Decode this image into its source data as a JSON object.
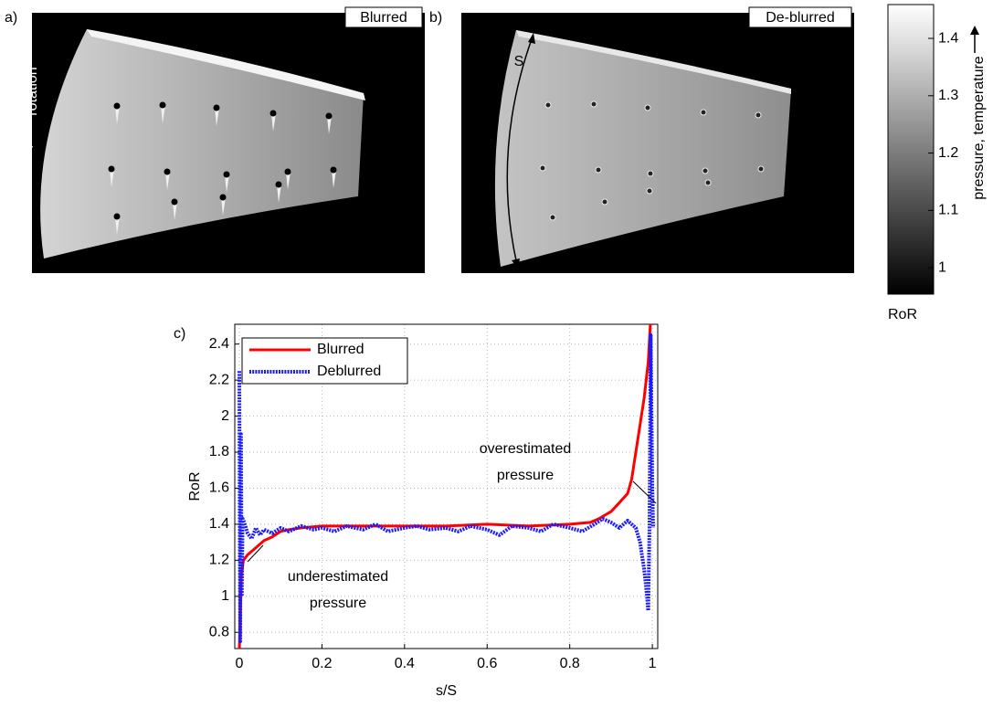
{
  "panels": {
    "a": {
      "label": "a)",
      "title": "Blurred",
      "annotation": "rotation"
    },
    "b": {
      "label": "b)",
      "title": "De-blurred",
      "annotation": "S"
    }
  },
  "colorbar": {
    "label": "RoR",
    "axis_label": "pressure, temperature",
    "lim": [
      0.954,
      1.459
    ],
    "ticks": [
      1,
      1.1,
      1.2,
      1.3,
      1.4
    ]
  },
  "chart_data": {
    "type": "line",
    "panel_label": "c)",
    "x_label": "s/S",
    "y_label": "RoR",
    "xlim": [
      -0.011,
      1.013
    ],
    "ylim": [
      0.71,
      2.51
    ],
    "xticks": [
      0,
      0.2,
      0.4,
      0.6,
      0.8,
      1
    ],
    "yticks": [
      0.8,
      1,
      1.2,
      1.4,
      1.6,
      1.8,
      2,
      2.2,
      2.4
    ],
    "grid": true,
    "legend": "upper left",
    "series": [
      {
        "name": "Blurred",
        "color": "#ff0000",
        "style": "solid",
        "x": [
          0,
          0.005,
          0.01,
          0.02,
          0.04,
          0.06,
          0.08,
          0.1,
          0.12,
          0.15,
          0.2,
          0.3,
          0.4,
          0.5,
          0.6,
          0.7,
          0.8,
          0.85,
          0.87,
          0.9,
          0.92,
          0.94,
          0.95,
          0.96,
          0.97,
          0.98,
          0.99,
          0.995
        ],
        "values": [
          0.7,
          1.12,
          1.2,
          1.23,
          1.27,
          1.31,
          1.33,
          1.36,
          1.37,
          1.38,
          1.39,
          1.39,
          1.39,
          1.39,
          1.4,
          1.39,
          1.4,
          1.41,
          1.43,
          1.47,
          1.52,
          1.57,
          1.65,
          1.8,
          1.95,
          2.1,
          2.3,
          2.51
        ]
      },
      {
        "name": "Deblurred",
        "color": "#1a1aff",
        "style": "dotted",
        "x": [
          0,
          0.002,
          0.004,
          0.006,
          0.008,
          0.012,
          0.02,
          0.03,
          0.04,
          0.05,
          0.06,
          0.08,
          0.1,
          0.12,
          0.15,
          0.18,
          0.2,
          0.23,
          0.26,
          0.3,
          0.33,
          0.36,
          0.4,
          0.43,
          0.46,
          0.5,
          0.53,
          0.56,
          0.6,
          0.63,
          0.66,
          0.7,
          0.73,
          0.76,
          0.8,
          0.83,
          0.86,
          0.88,
          0.9,
          0.92,
          0.94,
          0.96,
          0.97,
          0.98,
          0.985,
          0.99,
          0.993,
          0.996,
          1.0,
          1.002
        ],
        "values": [
          2.25,
          0.75,
          1.9,
          1.0,
          1.43,
          1.41,
          1.35,
          1.32,
          1.38,
          1.34,
          1.37,
          1.35,
          1.38,
          1.36,
          1.39,
          1.37,
          1.38,
          1.36,
          1.39,
          1.37,
          1.4,
          1.36,
          1.38,
          1.39,
          1.37,
          1.38,
          1.36,
          1.39,
          1.37,
          1.34,
          1.39,
          1.38,
          1.36,
          1.4,
          1.38,
          1.36,
          1.4,
          1.43,
          1.41,
          1.38,
          1.42,
          1.38,
          1.3,
          1.15,
          1.05,
          0.92,
          1.4,
          2.45,
          1.6,
          1.38
        ]
      }
    ],
    "annotations": [
      {
        "lines": [
          "overestimated",
          "pressure"
        ]
      },
      {
        "lines": [
          "underestimated",
          "pressure"
        ]
      }
    ]
  }
}
